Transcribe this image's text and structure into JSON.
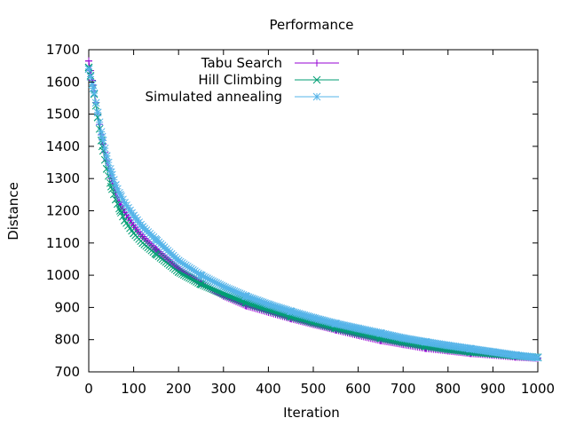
{
  "chart_data": {
    "type": "line",
    "title": "Performance",
    "xlabel": "Iteration",
    "ylabel": "Distance",
    "xlim": [
      0,
      1000
    ],
    "ylim": [
      700,
      1700
    ],
    "xticks": [
      0,
      100,
      200,
      300,
      400,
      500,
      600,
      700,
      800,
      900,
      1000
    ],
    "yticks": [
      700,
      800,
      900,
      1000,
      1100,
      1200,
      1300,
      1400,
      1500,
      1600,
      1700
    ],
    "legend_position": "top-left",
    "grid": false,
    "series": [
      {
        "name": "Tabu Search",
        "color": "#9400d3",
        "marker": "plus",
        "x": [
          0,
          10,
          20,
          30,
          40,
          50,
          60,
          70,
          80,
          100,
          120,
          150,
          200,
          250,
          300,
          350,
          400,
          450,
          500,
          550,
          600,
          650,
          700,
          750,
          800,
          850,
          900,
          950,
          1000
        ],
        "y": [
          1665,
          1590,
          1500,
          1420,
          1355,
          1300,
          1255,
          1220,
          1195,
          1155,
          1120,
          1080,
          1020,
          975,
          935,
          905,
          885,
          865,
          847,
          830,
          813,
          797,
          785,
          773,
          765,
          757,
          752,
          746,
          742
        ]
      },
      {
        "name": "Hill Climbing",
        "color": "#009e73",
        "marker": "cross",
        "x": [
          0,
          10,
          20,
          30,
          40,
          50,
          60,
          70,
          80,
          100,
          120,
          150,
          200,
          250,
          300,
          350,
          400,
          450,
          500,
          550,
          600,
          650,
          700,
          750,
          800,
          850,
          900,
          950,
          1000
        ],
        "y": [
          1645,
          1580,
          1490,
          1400,
          1330,
          1275,
          1235,
          1200,
          1170,
          1130,
          1100,
          1065,
          1010,
          972,
          942,
          915,
          893,
          872,
          853,
          836,
          820,
          805,
          792,
          780,
          770,
          762,
          756,
          750,
          745
        ]
      },
      {
        "name": "Simulated annealing",
        "color": "#56b4e9",
        "marker": "star",
        "x": [
          0,
          10,
          20,
          30,
          40,
          50,
          60,
          70,
          80,
          100,
          120,
          150,
          200,
          250,
          300,
          350,
          400,
          450,
          500,
          550,
          600,
          650,
          700,
          750,
          800,
          850,
          900,
          950,
          1000
        ],
        "y": [
          1640,
          1580,
          1505,
          1430,
          1370,
          1320,
          1280,
          1250,
          1225,
          1185,
          1150,
          1110,
          1045,
          1000,
          965,
          935,
          910,
          888,
          868,
          850,
          835,
          820,
          805,
          793,
          782,
          772,
          762,
          752,
          744
        ]
      }
    ]
  }
}
